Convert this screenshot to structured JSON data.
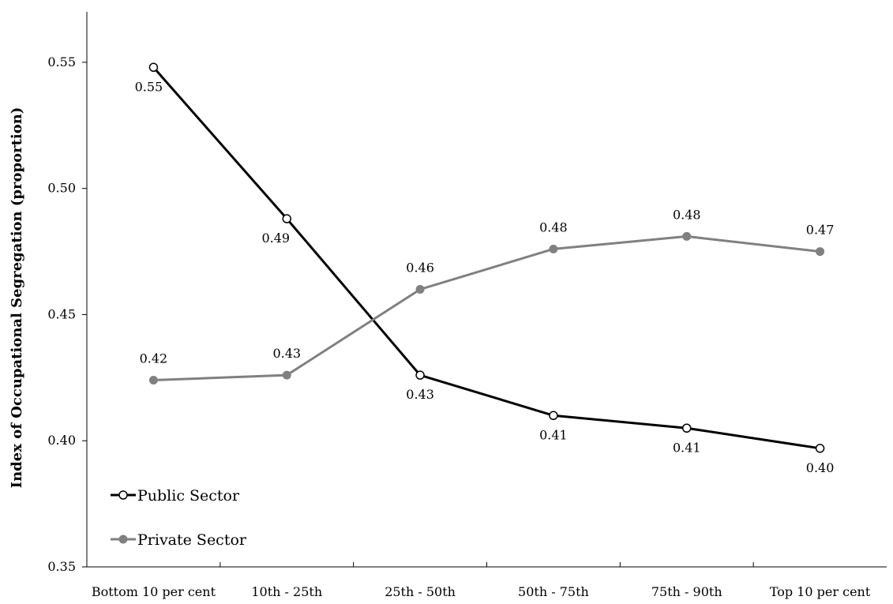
{
  "chart_data": {
    "type": "line",
    "title": "",
    "xlabel": "",
    "ylabel": "Index of Occupational Segregation (proportion)",
    "categories": [
      "Bottom 10 per cent",
      "10th - 25th",
      "25th - 50th",
      "50th - 75th",
      "75th - 90th",
      "Top 10 per cent"
    ],
    "ylim": [
      0.35,
      0.55
    ],
    "yticks": [
      "0.35",
      "0.40",
      "0.45",
      "0.50",
      "0.55"
    ],
    "grid": false,
    "legend_position": "bottom-left",
    "series": [
      {
        "name": "Public Sector",
        "values": [
          0.548,
          0.488,
          0.426,
          0.41,
          0.405,
          0.397
        ],
        "labels": [
          "0.55",
          "0.49",
          "0.43",
          "0.41",
          "0.41",
          "0.40"
        ],
        "color": "#000000",
        "marker": "open-circle"
      },
      {
        "name": "Private Sector",
        "values": [
          0.424,
          0.426,
          0.46,
          0.476,
          0.481,
          0.475
        ],
        "labels": [
          "0.42",
          "0.43",
          "0.46",
          "0.48",
          "0.48",
          "0.47"
        ],
        "color": "#808080",
        "marker": "filled-circle"
      }
    ]
  }
}
